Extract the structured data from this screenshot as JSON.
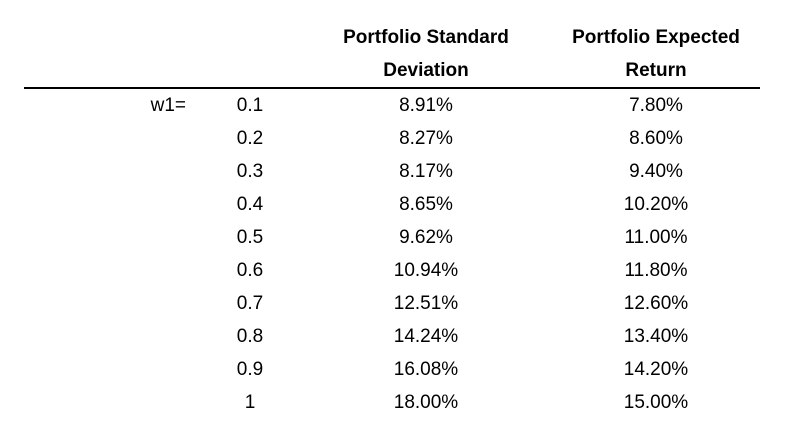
{
  "colors": {
    "background": "#ffffff",
    "text": "#000000",
    "header_rule": "#000000"
  },
  "table": {
    "headers": [
      {
        "line1": "Portfolio Standard",
        "line2": "Deviation"
      },
      {
        "line1": "Portfolio Expected",
        "line2": "Return"
      }
    ],
    "row_label": "w1=",
    "rows": [
      {
        "label": "w1=",
        "weight": "0.1",
        "std_dev": "8.91%",
        "exp_return": "7.80%"
      },
      {
        "label": "",
        "weight": "0.2",
        "std_dev": "8.27%",
        "exp_return": "8.60%"
      },
      {
        "label": "",
        "weight": "0.3",
        "std_dev": "8.17%",
        "exp_return": "9.40%"
      },
      {
        "label": "",
        "weight": "0.4",
        "std_dev": "8.65%",
        "exp_return": "10.20%"
      },
      {
        "label": "",
        "weight": "0.5",
        "std_dev": "9.62%",
        "exp_return": "11.00%"
      },
      {
        "label": "",
        "weight": "0.6",
        "std_dev": "10.94%",
        "exp_return": "11.80%"
      },
      {
        "label": "",
        "weight": "0.7",
        "std_dev": "12.51%",
        "exp_return": "12.60%"
      },
      {
        "label": "",
        "weight": "0.8",
        "std_dev": "14.24%",
        "exp_return": "13.40%"
      },
      {
        "label": "",
        "weight": "0.9",
        "std_dev": "16.08%",
        "exp_return": "14.20%"
      },
      {
        "label": "",
        "weight": "1",
        "std_dev": "18.00%",
        "exp_return": "15.00%"
      }
    ]
  },
  "chart_data": {
    "type": "table",
    "columns": [
      "w1",
      "Portfolio Standard Deviation",
      "Portfolio Expected Return"
    ],
    "weights": [
      0.1,
      0.2,
      0.3,
      0.4,
      0.5,
      0.6,
      0.7,
      0.8,
      0.9,
      1
    ],
    "portfolio_standard_deviation_pct": [
      8.91,
      8.27,
      8.17,
      8.65,
      9.62,
      10.94,
      12.51,
      14.24,
      16.08,
      18.0
    ],
    "portfolio_expected_return_pct": [
      7.8,
      8.6,
      9.4,
      10.2,
      11.0,
      11.8,
      12.6,
      13.4,
      14.2,
      15.0
    ]
  }
}
